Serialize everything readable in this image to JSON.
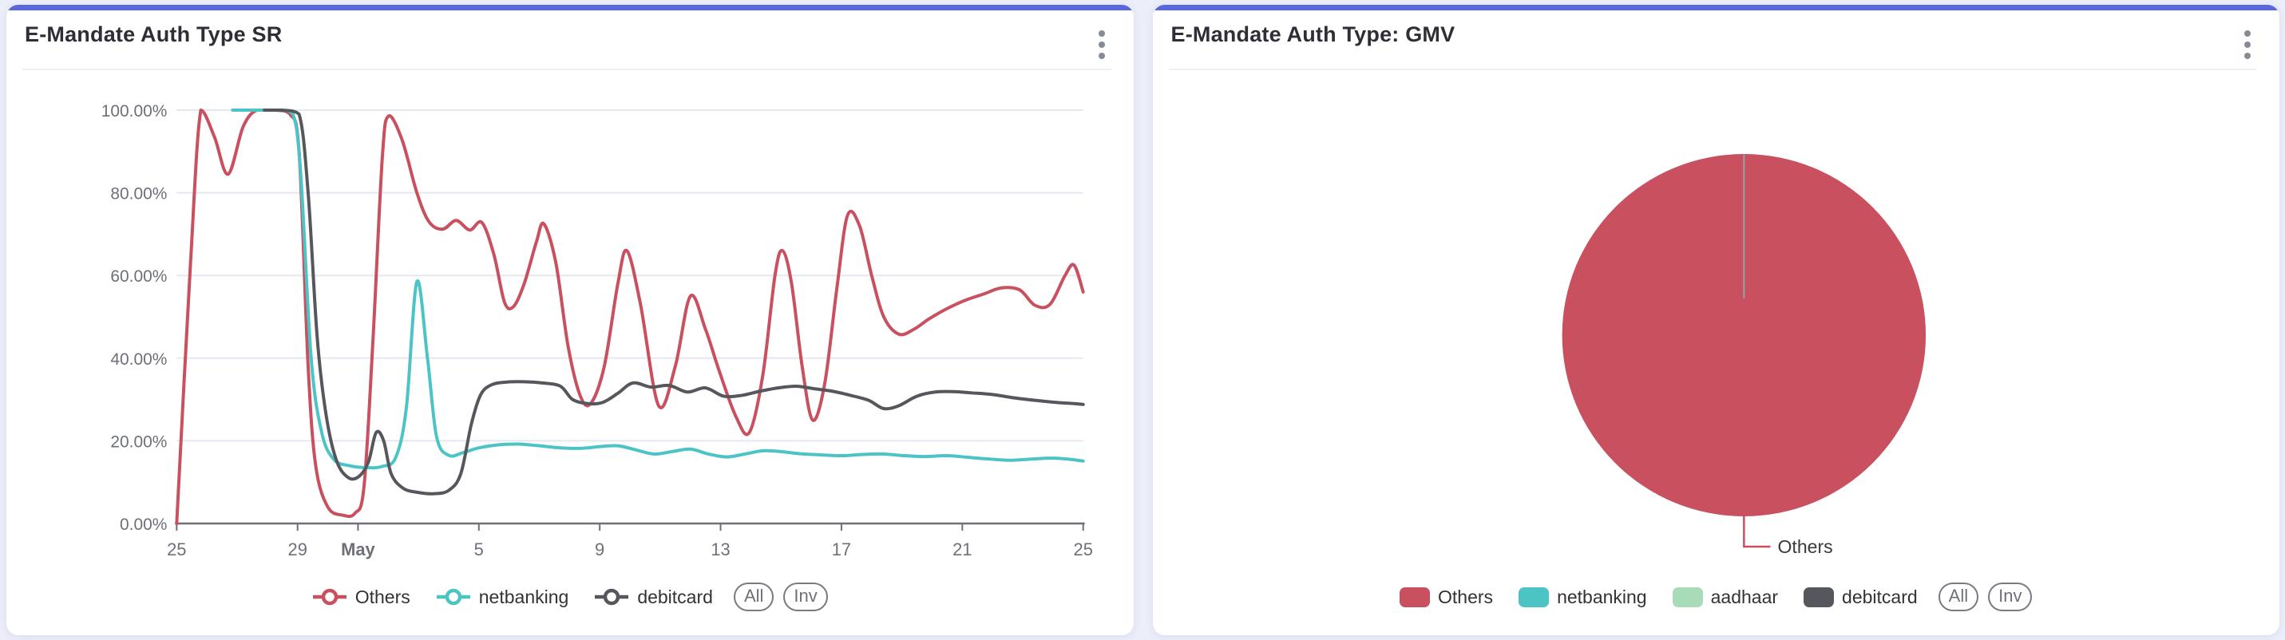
{
  "page": {
    "background": "#ecEEf9",
    "accent_color": "#5a67dd"
  },
  "cards": [
    {
      "title": "E-Mandate Auth Type SR"
    },
    {
      "title": "E-Mandate Auth Type: GMV"
    }
  ],
  "chart_data": [
    {
      "type": "line",
      "title": "E-Mandate Auth Type SR",
      "y_axis": {
        "unit": "%",
        "min": 0,
        "max": 100,
        "labels": [
          "0.00%",
          "20.00%",
          "40.00%",
          "60.00%",
          "80.00%",
          "100.00%"
        ],
        "grid": true
      },
      "x_axis": {
        "day_range": [
          0,
          30
        ],
        "tick_days": [
          0,
          4,
          6,
          10,
          14,
          18,
          22,
          26,
          30
        ],
        "tick_labels": [
          "25",
          "29",
          "May",
          "5",
          "9",
          "13",
          "17",
          "21",
          "25"
        ],
        "bold_label": "May"
      },
      "series": [
        {
          "name": "Others",
          "color": "#c8505f",
          "points": [
            [
              0,
              0
            ],
            [
              0.45,
              62
            ],
            [
              0.8,
              100
            ],
            [
              1.25,
              93.5
            ],
            [
              1.7,
              84.5
            ],
            [
              2.2,
              96
            ],
            [
              2.65,
              100
            ],
            [
              3.3,
              100
            ],
            [
              3.75,
              99
            ],
            [
              4.05,
              90
            ],
            [
              4.35,
              38
            ],
            [
              4.6,
              14
            ],
            [
              5.0,
              4
            ],
            [
              5.5,
              2
            ],
            [
              5.9,
              2.5
            ],
            [
              6.2,
              9
            ],
            [
              6.5,
              45
            ],
            [
              6.8,
              88
            ],
            [
              7.0,
              98.5
            ],
            [
              7.45,
              93
            ],
            [
              7.95,
              80
            ],
            [
              8.35,
              73
            ],
            [
              8.8,
              71.2
            ],
            [
              9.25,
              73.3
            ],
            [
              9.7,
              71
            ],
            [
              10.1,
              72.8
            ],
            [
              10.5,
              65
            ],
            [
              10.85,
              53.5
            ],
            [
              11.15,
              52.5
            ],
            [
              11.5,
              58
            ],
            [
              11.9,
              68
            ],
            [
              12.15,
              72.5
            ],
            [
              12.55,
              63
            ],
            [
              12.95,
              43
            ],
            [
              13.35,
              31
            ],
            [
              13.7,
              29
            ],
            [
              14.15,
              38
            ],
            [
              14.6,
              58
            ],
            [
              14.9,
              66
            ],
            [
              15.35,
              53
            ],
            [
              15.95,
              28.5
            ],
            [
              16.5,
              38
            ],
            [
              17.0,
              55
            ],
            [
              17.5,
              47
            ],
            [
              17.95,
              37
            ],
            [
              18.5,
              26
            ],
            [
              18.95,
              22
            ],
            [
              19.4,
              36
            ],
            [
              19.8,
              60
            ],
            [
              20.05,
              66
            ],
            [
              20.35,
              58
            ],
            [
              20.7,
              38
            ],
            [
              21.05,
              25
            ],
            [
              21.45,
              34
            ],
            [
              21.85,
              57
            ],
            [
              22.2,
              74.5
            ],
            [
              22.6,
              72
            ],
            [
              23.0,
              60
            ],
            [
              23.4,
              50
            ],
            [
              23.9,
              45.8
            ],
            [
              24.4,
              47
            ],
            [
              24.9,
              49.5
            ],
            [
              25.5,
              52
            ],
            [
              26.1,
              54
            ],
            [
              26.7,
              55.5
            ],
            [
              27.3,
              57
            ],
            [
              27.9,
              56.5
            ],
            [
              28.4,
              52.8
            ],
            [
              28.9,
              53
            ],
            [
              29.4,
              60
            ],
            [
              29.7,
              62.5
            ],
            [
              30,
              56
            ]
          ]
        },
        {
          "name": "netbanking",
          "color": "#4cc4c6",
          "points": [
            [
              1.85,
              100
            ],
            [
              2.6,
              100
            ],
            [
              3.4,
              100
            ],
            [
              3.85,
              99
            ],
            [
              4.1,
              85
            ],
            [
              4.45,
              40
            ],
            [
              4.8,
              22
            ],
            [
              5.2,
              15.5
            ],
            [
              5.7,
              14
            ],
            [
              6.3,
              13.5
            ],
            [
              6.8,
              13.8
            ],
            [
              7.25,
              16
            ],
            [
              7.6,
              28
            ],
            [
              7.95,
              58.5
            ],
            [
              8.3,
              40
            ],
            [
              8.6,
              21
            ],
            [
              9.0,
              16.5
            ],
            [
              9.5,
              17.2
            ],
            [
              10.0,
              18.3
            ],
            [
              10.6,
              19
            ],
            [
              11.3,
              19.2
            ],
            [
              12.0,
              18.8
            ],
            [
              12.7,
              18.3
            ],
            [
              13.4,
              18.2
            ],
            [
              14.0,
              18.6
            ],
            [
              14.6,
              18.8
            ],
            [
              15.2,
              17.8
            ],
            [
              15.8,
              16.8
            ],
            [
              16.4,
              17.4
            ],
            [
              17.0,
              18.0
            ],
            [
              17.6,
              16.8
            ],
            [
              18.2,
              16.1
            ],
            [
              18.8,
              16.8
            ],
            [
              19.4,
              17.6
            ],
            [
              20.0,
              17.4
            ],
            [
              20.6,
              16.9
            ],
            [
              21.3,
              16.6
            ],
            [
              22.0,
              16.4
            ],
            [
              22.7,
              16.7
            ],
            [
              23.4,
              16.8
            ],
            [
              24.1,
              16.4
            ],
            [
              24.8,
              16.2
            ],
            [
              25.5,
              16.4
            ],
            [
              26.2,
              16.0
            ],
            [
              26.9,
              15.6
            ],
            [
              27.6,
              15.3
            ],
            [
              28.3,
              15.6
            ],
            [
              29.0,
              15.8
            ],
            [
              29.6,
              15.5
            ],
            [
              30,
              15.1
            ]
          ]
        },
        {
          "name": "debitcard",
          "color": "#55575c",
          "points": [
            [
              2.9,
              100
            ],
            [
              3.5,
              100
            ],
            [
              4.05,
              99
            ],
            [
              4.35,
              80
            ],
            [
              4.65,
              45
            ],
            [
              4.95,
              26
            ],
            [
              5.3,
              15
            ],
            [
              5.7,
              11
            ],
            [
              6.05,
              11.5
            ],
            [
              6.35,
              15
            ],
            [
              6.6,
              22
            ],
            [
              6.85,
              20
            ],
            [
              7.1,
              12
            ],
            [
              7.5,
              8.5
            ],
            [
              8.0,
              7.5
            ],
            [
              8.5,
              7.2
            ],
            [
              9.0,
              8
            ],
            [
              9.4,
              12
            ],
            [
              9.75,
              24
            ],
            [
              10.05,
              31
            ],
            [
              10.4,
              33.5
            ],
            [
              10.9,
              34.2
            ],
            [
              11.5,
              34.3
            ],
            [
              12.1,
              34
            ],
            [
              12.7,
              33.2
            ],
            [
              13.1,
              30
            ],
            [
              13.6,
              29
            ],
            [
              14.1,
              29.3
            ],
            [
              14.6,
              31.5
            ],
            [
              15.1,
              34
            ],
            [
              15.7,
              33
            ],
            [
              16.3,
              33.4
            ],
            [
              16.9,
              31.8
            ],
            [
              17.5,
              32.8
            ],
            [
              18.1,
              30.8
            ],
            [
              18.7,
              31
            ],
            [
              19.3,
              32
            ],
            [
              19.9,
              32.8
            ],
            [
              20.5,
              33.2
            ],
            [
              21.1,
              32.6
            ],
            [
              21.7,
              32
            ],
            [
              22.3,
              31
            ],
            [
              22.9,
              29.8
            ],
            [
              23.4,
              27.8
            ],
            [
              23.9,
              28.5
            ],
            [
              24.5,
              30.8
            ],
            [
              25.1,
              31.8
            ],
            [
              25.7,
              31.9
            ],
            [
              26.3,
              31.6
            ],
            [
              27.0,
              31.2
            ],
            [
              27.7,
              30.4
            ],
            [
              28.4,
              29.8
            ],
            [
              29.1,
              29.3
            ],
            [
              29.7,
              29
            ],
            [
              30,
              28.8
            ]
          ]
        }
      ],
      "legend": [
        "Others",
        "netbanking",
        "debitcard"
      ],
      "buttons": [
        "All",
        "Inv"
      ]
    },
    {
      "type": "pie",
      "title": "E-Mandate Auth Type: GMV",
      "slices": [
        {
          "name": "Others",
          "color": "#c8505f",
          "value": 99.8
        },
        {
          "name": "netbanking",
          "color": "#4cc4c6",
          "value": 0.1
        },
        {
          "name": "aadhaar",
          "color": "#a8dbb7",
          "value": 0.05
        },
        {
          "name": "debitcard",
          "color": "#55575c",
          "value": 0.05
        }
      ],
      "callout_label": "Others",
      "legend": [
        "Others",
        "netbanking",
        "aadhaar",
        "debitcard"
      ],
      "buttons": [
        "All",
        "Inv"
      ]
    }
  ]
}
